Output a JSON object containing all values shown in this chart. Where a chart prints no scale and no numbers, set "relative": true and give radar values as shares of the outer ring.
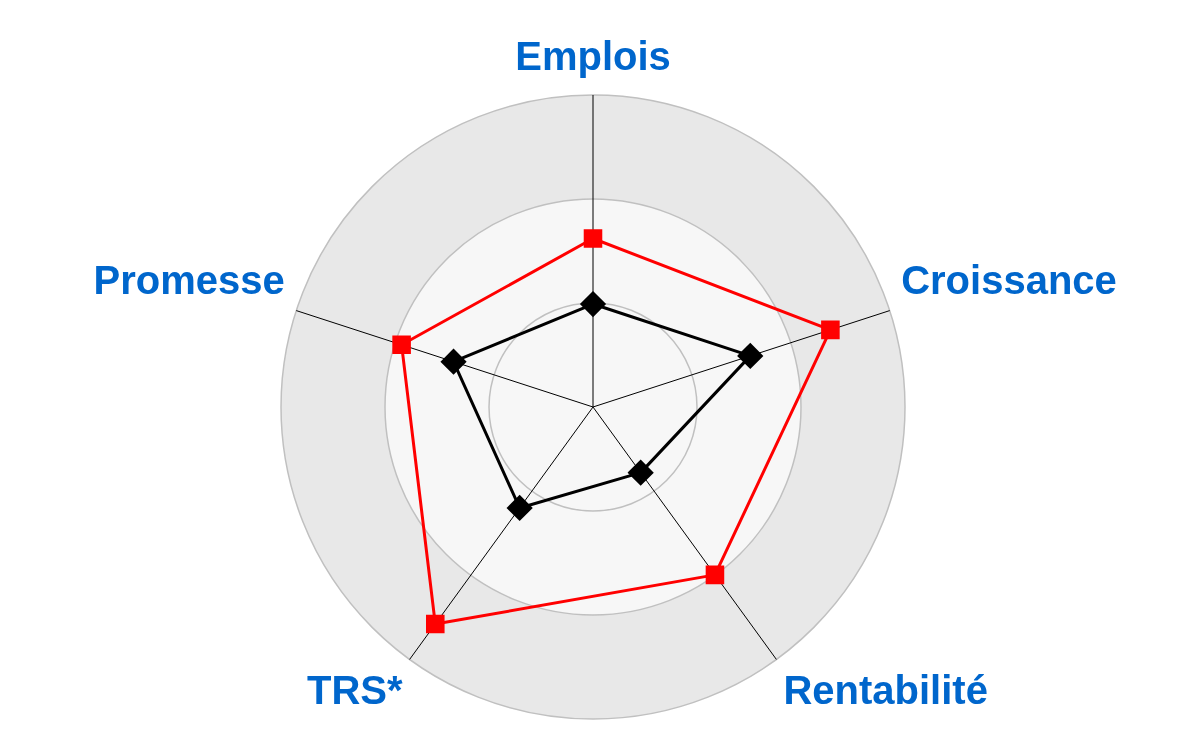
{
  "chart_data": {
    "type": "radar",
    "relative": true,
    "grid": true,
    "categories": [
      "Emplois",
      "Croissance",
      "Rentabilité",
      "TRS*",
      "Promesse"
    ],
    "series": [
      {
        "color": "#ff0000",
        "marker": "square",
        "values": [
          0.54,
          0.8,
          0.665,
          0.86,
          0.645
        ]
      },
      {
        "color": "#000000",
        "marker": "diamond",
        "values": [
          0.33,
          0.53,
          0.26,
          0.4,
          0.47
        ]
      }
    ]
  }
}
